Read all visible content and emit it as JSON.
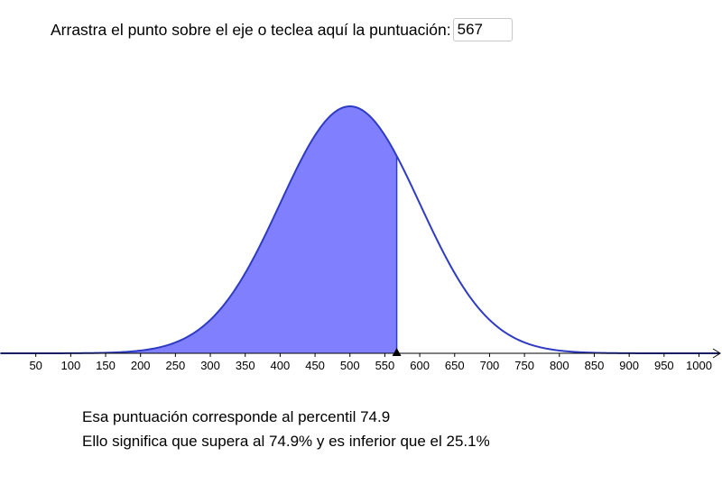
{
  "prompt": {
    "text": "Arrastra el punto sobre el eje o teclea aquí la puntuación:",
    "value": "567"
  },
  "result": {
    "percentile_text": "Esa puntuación corresponde al percentil 74.9",
    "meaning_text": "Ello significa que supera al 74.9% y es inferior que el 25.1%"
  },
  "chart_data": {
    "type": "area",
    "distribution": "normal",
    "mean": 500,
    "sd": 100,
    "shaded_upto": 567,
    "x_ticks": [
      50,
      100,
      150,
      200,
      250,
      300,
      350,
      400,
      450,
      500,
      550,
      600,
      650,
      700,
      750,
      800,
      850,
      900,
      950,
      1000
    ],
    "xlim": [
      0,
      1030
    ],
    "colors": {
      "curve": "#2e3bc2",
      "fill": "#8080ff",
      "axis": "#000000"
    }
  }
}
